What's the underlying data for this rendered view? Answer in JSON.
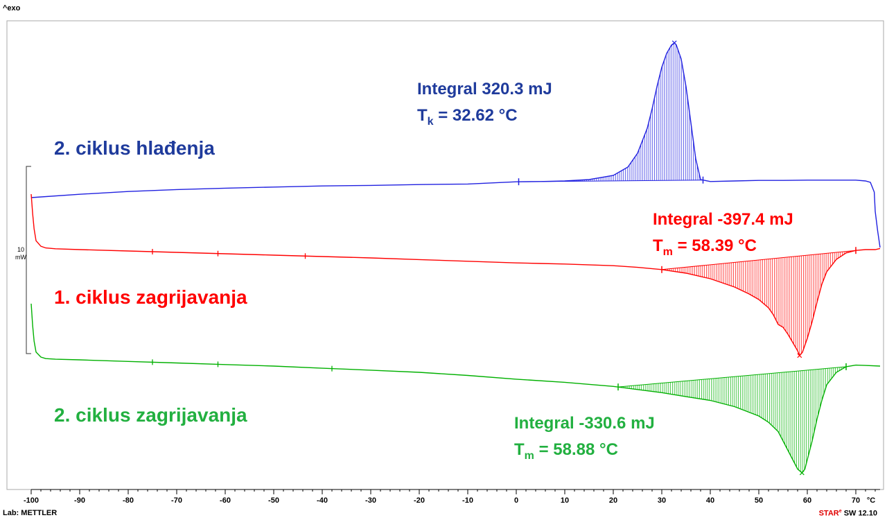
{
  "header": {
    "exo_label": "^exo"
  },
  "footer": {
    "lab_text": "Lab: METTLER",
    "software_prefix": "STAR",
    "software_sup": "e",
    "software_suffix": " SW 12.10"
  },
  "scale_bar": {
    "value": "10",
    "unit": "mW"
  },
  "chart_data": {
    "type": "line",
    "xlabel": "°C",
    "xlim": [
      -100,
      75
    ],
    "x_ticks": [
      -100,
      -90,
      -80,
      -70,
      -60,
      -50,
      -40,
      -30,
      -20,
      -10,
      0,
      10,
      20,
      30,
      40,
      50,
      60,
      70
    ],
    "y_axis_visible": false,
    "colors": {
      "cooling2": "#2020e0",
      "heating1": "#ff0000",
      "heating2": "#00b000",
      "annotation_blue": "#1f3b9c",
      "annotation_red": "#ff0000",
      "annotation_green": "#22b040"
    },
    "series": [
      {
        "key": "cooling2",
        "name": "2. ciklus hlađenja",
        "x": [
          -100,
          -90,
          -80,
          -70,
          -60,
          -50,
          -40,
          -30,
          -20,
          -10,
          -5,
          0,
          5,
          10,
          15,
          20,
          23,
          25,
          27,
          28,
          29,
          30,
          31,
          32,
          32.6,
          33,
          34,
          35,
          36,
          37,
          38,
          40,
          45,
          50,
          55,
          60,
          65,
          70,
          72,
          73,
          73.8,
          74,
          74.5,
          75
        ],
        "y": [
          0,
          0.12,
          0.22,
          0.29,
          0.34,
          0.38,
          0.42,
          0.44,
          0.47,
          0.49,
          0.53,
          0.57,
          0.58,
          0.6,
          0.65,
          0.8,
          1.1,
          1.6,
          2.5,
          3.2,
          4.0,
          4.7,
          5.2,
          5.5,
          5.58,
          5.5,
          5.0,
          4.0,
          2.7,
          1.4,
          0.65,
          0.58,
          0.6,
          0.62,
          0.62,
          0.63,
          0.63,
          0.63,
          0.6,
          0.55,
          0.2,
          -0.5,
          -1.2,
          -1.8
        ],
        "annotation": {
          "line1": "Integral 320.3 mJ",
          "symbol": "T",
          "sub": "k",
          "value": " = 32.62 °C"
        }
      },
      {
        "key": "heating1",
        "name": "1. ciklus zagrijavanja",
        "x": [
          -100,
          -99.7,
          -99.4,
          -99,
          -98,
          -97,
          -95,
          -90,
          -80,
          -70,
          -60,
          -50,
          -40,
          -30,
          -20,
          -10,
          0,
          5,
          10,
          20,
          25,
          30,
          35,
          40,
          45,
          48,
          50,
          52,
          53,
          54,
          55,
          56,
          57,
          58,
          58.4,
          59,
          60,
          61,
          62,
          63,
          64,
          66,
          68,
          70,
          72,
          74,
          75
        ],
        "y": [
          2,
          1.3,
          0.75,
          0.32,
          0.12,
          0.06,
          0.03,
          0,
          -0.05,
          -0.1,
          -0.15,
          -0.2,
          -0.25,
          -0.3,
          -0.36,
          -0.42,
          -0.48,
          -0.5,
          -0.52,
          -0.58,
          -0.64,
          -0.72,
          -0.85,
          -1.05,
          -1.35,
          -1.6,
          -1.8,
          -2.1,
          -2.35,
          -2.7,
          -2.8,
          -3.05,
          -3.35,
          -3.65,
          -3.82,
          -3.7,
          -3.2,
          -2.6,
          -1.9,
          -1.25,
          -0.8,
          -0.35,
          -0.12,
          -0.03,
          0,
          0,
          0.04
        ]
      },
      {
        "key": "heating2",
        "name": "2. ciklus zagrijavanja",
        "x": [
          -100,
          -99.7,
          -99.4,
          -99,
          -98,
          -97,
          -95,
          -90,
          -80,
          -70,
          -60,
          -50,
          -40,
          -30,
          -20,
          -10,
          0,
          10,
          20,
          25,
          30,
          35,
          40,
          45,
          50,
          52,
          54,
          55,
          56,
          57,
          58,
          58.9,
          59.5,
          60,
          61,
          62,
          63,
          64,
          66,
          68,
          70,
          72,
          75
        ],
        "y": [
          1.8,
          1.1,
          0.6,
          0.25,
          0.09,
          0.04,
          0.02,
          0,
          -0.05,
          -0.1,
          -0.15,
          -0.2,
          -0.27,
          -0.33,
          -0.4,
          -0.5,
          -0.62,
          -0.72,
          -0.85,
          -0.95,
          -1.05,
          -1.18,
          -1.3,
          -1.5,
          -1.8,
          -2.0,
          -2.3,
          -2.6,
          -2.9,
          -3.2,
          -3.5,
          -3.62,
          -3.5,
          -3.2,
          -2.6,
          -1.9,
          -1.3,
          -0.8,
          -0.4,
          -0.22,
          -0.17,
          -0.18,
          -0.2
        ],
        "annotation": {
          "line1": "Integral  -330.6 mJ",
          "symbol": "T",
          "sub": "m",
          "value": " = 58.88 °C"
        }
      }
    ],
    "heating1_annotation": {
      "line1": "Integral  -397.4 mJ",
      "symbol": "T",
      "sub": "m",
      "value": " = 58.39 °C"
    },
    "integrated_regions": [
      {
        "series": "cooling2",
        "from": 0.5,
        "to": 38.5
      },
      {
        "series": "heating1",
        "from": 30,
        "to": 70
      },
      {
        "series": "heating2",
        "from": 21,
        "to": 68
      }
    ]
  }
}
